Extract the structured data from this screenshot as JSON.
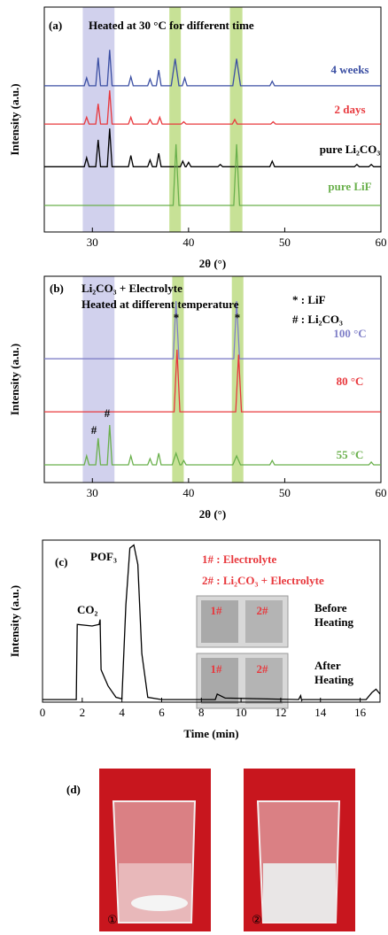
{
  "chart_data": [
    {
      "type": "line",
      "panel": "(a)",
      "title": "Heated at 30 °C for different time",
      "x_label": "2θ (°)",
      "y_label": "Intensity (a.u.)",
      "xlim": [
        25,
        60
      ],
      "xticks": [
        30,
        40,
        50,
        60
      ],
      "ylim": [
        0,
        100
      ],
      "bands": [
        {
          "xlim": [
            29,
            32.3
          ],
          "color": "#c6c6e8"
        },
        {
          "xlim": [
            38,
            39.2
          ],
          "color": "#b9d97c"
        },
        {
          "xlim": [
            44.3,
            45.6
          ],
          "color": "#b9d97c"
        }
      ],
      "series": [
        {
          "name": "4 weeks",
          "color": "#3b4fa3",
          "x": [
            25,
            29.15,
            29.4,
            29.65,
            30.35,
            30.6,
            30.85,
            31.55,
            31.8,
            32.05,
            33.75,
            34,
            34.25,
            35.75,
            36,
            36.25,
            36.65,
            36.9,
            37.15,
            38.2,
            38.6,
            39.0,
            39.35,
            39.6,
            39.85,
            44.6,
            45,
            45.4,
            48.45,
            48.7,
            48.95,
            60
          ],
          "values": [
            65,
            65,
            68.5,
            65,
            65,
            77.5,
            65,
            65,
            81,
            65,
            65,
            69,
            65,
            65,
            68,
            65,
            65,
            72,
            65,
            65,
            77,
            65,
            65,
            68.5,
            65,
            65,
            77,
            65,
            65,
            67,
            65,
            65
          ]
        },
        {
          "name": "2 days",
          "color": "#e8383d",
          "x": [
            25,
            29.15,
            29.4,
            29.65,
            30.35,
            30.6,
            30.85,
            31.55,
            31.8,
            32.05,
            33.75,
            34,
            34.25,
            35.75,
            36,
            36.25,
            36.75,
            37,
            37.25,
            39.25,
            39.5,
            39.75,
            44.55,
            44.8,
            45.05,
            48.55,
            48.8,
            49.05,
            60
          ],
          "values": [
            48,
            48,
            51,
            48,
            48,
            57,
            48,
            48,
            63,
            48,
            48,
            51,
            48,
            48,
            50,
            48,
            48,
            51,
            48,
            48,
            49,
            48,
            48,
            50,
            48,
            48,
            49,
            48,
            48
          ]
        },
        {
          "name": "pure Li₂CO₃",
          "color": "#000000",
          "x": [
            25,
            29.15,
            29.4,
            29.65,
            30.35,
            30.6,
            30.85,
            31.55,
            31.8,
            32.05,
            33.75,
            34,
            34.25,
            35.75,
            36,
            36.25,
            36.65,
            36.9,
            37.15,
            39.15,
            39.4,
            39.65,
            39.75,
            40,
            40.25,
            43.05,
            43.3,
            43.55,
            48.45,
            48.7,
            48.95,
            57.25,
            57.5,
            57.75,
            58.75,
            59,
            59.25,
            60
          ],
          "values": [
            29,
            29,
            33,
            29,
            29,
            41,
            29,
            29,
            46,
            29,
            29,
            34,
            29,
            29,
            32,
            29,
            29,
            35,
            29,
            29,
            31.5,
            29,
            29,
            31,
            29,
            29,
            30,
            29,
            29,
            31.5,
            29,
            29,
            30,
            29,
            29,
            30,
            29,
            29
          ]
        },
        {
          "name": "pure LiF",
          "color": "#6ab04c",
          "x": [
            25,
            38.4,
            38.7,
            39.0,
            44.7,
            45,
            45.3,
            60
          ],
          "values": [
            11.8,
            11.8,
            39,
            11.8,
            11.8,
            39,
            11.8,
            11.8
          ]
        }
      ]
    },
    {
      "type": "line",
      "panel": "(b)",
      "x_label": "2θ (°)",
      "y_label": "Intensity (a.u.)",
      "xlim": [
        25,
        60
      ],
      "xticks": [
        30,
        40,
        50,
        60
      ],
      "ylim": [
        0,
        100
      ],
      "bands": [
        {
          "xlim": [
            29,
            32.3
          ],
          "color": "#c6c6e8"
        },
        {
          "xlim": [
            38.3,
            39.5
          ],
          "color": "#b9d97c"
        },
        {
          "xlim": [
            44.5,
            45.7
          ],
          "color": "#b9d97c"
        }
      ],
      "annotations": [
        "Li₂CO₃ + Electrolyte",
        "Heated at different temperature",
        "* : LiF",
        "# : Li₂CO₃",
        "*",
        "*",
        "#",
        "#"
      ],
      "series": [
        {
          "name": "100 °C",
          "color": "#8080c8",
          "x": [
            25,
            38.4,
            38.7,
            39.0,
            44.7,
            45,
            45.3,
            60
          ],
          "values": [
            60,
            60,
            88,
            60,
            60,
            88,
            60,
            60
          ]
        },
        {
          "name": "80 °C",
          "color": "#e8383d",
          "x": [
            25,
            38.5,
            38.8,
            39.1,
            44.9,
            45.2,
            45.5,
            60
          ],
          "values": [
            34.3,
            34.3,
            64.4,
            34.3,
            34.3,
            62,
            34.3,
            34.3
          ]
        },
        {
          "name": "55 °C",
          "color": "#6ab04c",
          "x": [
            25,
            29.15,
            29.4,
            29.65,
            30.35,
            30.6,
            30.85,
            31.55,
            31.8,
            32.05,
            33.75,
            34,
            34.25,
            35.75,
            36,
            36.25,
            36.65,
            36.9,
            37.15,
            38.3,
            38.7,
            39.1,
            39.25,
            39.5,
            39.75,
            44.6,
            45,
            45.4,
            48.45,
            48.7,
            48.95,
            58.75,
            59,
            59.25,
            60
          ],
          "values": [
            8.6,
            8.6,
            12.9,
            8.6,
            8.6,
            21.5,
            8.6,
            8.6,
            27.9,
            8.6,
            8.6,
            12.9,
            8.6,
            8.6,
            11.6,
            8.6,
            8.6,
            14.2,
            8.6,
            8.6,
            14.2,
            8.6,
            8.6,
            10.7,
            8.6,
            8.6,
            12.9,
            8.6,
            8.6,
            10.7,
            8.6,
            8.6,
            9.9,
            8.6,
            8.6
          ]
        }
      ]
    },
    {
      "type": "line",
      "panel": "(c)",
      "x_label": "Time (min)",
      "y_label": "Intensity (a.u.)",
      "xlim": [
        0,
        17
      ],
      "xticks": [
        0,
        2,
        4,
        6,
        8,
        10,
        12,
        14,
        16
      ],
      "ylim": [
        0,
        100
      ],
      "annotations": [
        "CO₂",
        "POF₃",
        "1# : Electrolyte",
        "2# : Li₂CO₃ + Electrolyte",
        "1#",
        "2#",
        "1#",
        "2#",
        "Before",
        "Heating",
        "After",
        "Heating"
      ],
      "series": [
        {
          "color": "#000000",
          "x": [
            0,
            1.7,
            1.75,
            2.5,
            2.85,
            2.9,
            2.95,
            3.3,
            3.7,
            4.0,
            4.2,
            4.4,
            4.6,
            4.8,
            5.0,
            5.3,
            6,
            8.7,
            8.8,
            9.2,
            12.9,
            13.0,
            13.05,
            13.1,
            16.3,
            16.6,
            16.8,
            17
          ],
          "values": [
            1.6,
            1.6,
            48,
            47,
            48,
            51,
            20,
            10,
            3,
            2,
            60,
            95,
            97,
            85,
            30,
            3,
            1.6,
            1.6,
            5,
            2.5,
            1.6,
            4,
            1,
            1.6,
            1.6,
            6,
            8,
            5
          ]
        }
      ]
    }
  ],
  "photos": {
    "label": "(d)",
    "captions": [
      "①",
      "②"
    ]
  }
}
